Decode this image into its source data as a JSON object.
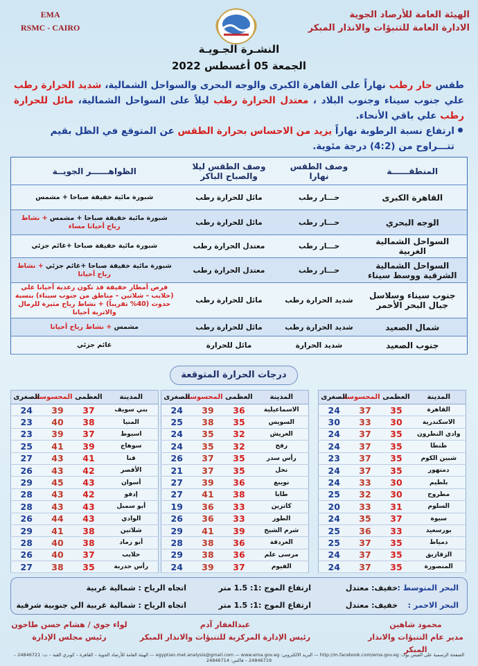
{
  "header": {
    "org_en": [
      "EMA",
      "RSMC - CAIRO"
    ],
    "org_ar": [
      "الهيئة العامة للأرصاد الجوية",
      "الادارة العامة للتنبؤات والانذار المبكر"
    ]
  },
  "title": "النشـرة الجـويـة",
  "date": "الجمعة 05 أغسطس 2022",
  "summary": [
    {
      "text": "طقس ",
      "color": "#1d3d94"
    },
    {
      "text": "حار رطب",
      "color": "#d4201f"
    },
    {
      "text": " نهاراً على القاهرة الكبرى والوجه البحرى والسواحل الشمالية، ",
      "color": "#1d3d94"
    },
    {
      "text": "شديد الحرارة رطب",
      "color": "#d4201f"
    },
    {
      "text": " علي جنوب سيناء وجنوب البلاد ، ",
      "color": "#1d3d94"
    },
    {
      "text": "معتدل الحرارة رطب",
      "color": "#d4201f"
    },
    {
      "text": " ليلاً على السواحل الشمالية، ",
      "color": "#1d3d94"
    },
    {
      "text": "مائل للحرارة رطب",
      "color": "#d4201f"
    },
    {
      "text": " علي باقي الأنحاء.",
      "color": "#1d3d94"
    }
  ],
  "bullet": [
    {
      "text": "ارتفاع نسبة الرطوبة نهاراً ",
      "color": "#1d3d94"
    },
    {
      "text": "يزيد من الاحساس بحرارة الطقس",
      "color": "#d4201f"
    },
    {
      "text": " عن المتوقع في الظل بقيم تتـــراوح من (4:2) درجة مئوية.",
      "color": "#1d3d94"
    }
  ],
  "weather_table": {
    "headers": [
      "المنطقــــــة",
      "وصف الطقس نهارا",
      "وصف الطقس ليلا والصباح الباكر",
      "الظواهــــــر الجويــة"
    ],
    "rows": [
      {
        "region": "القاهرة الكبرى",
        "day": "حـــار رطب",
        "night": "مائل للحرارة رطب",
        "phenomena": [
          {
            "text": "شبورة مائية خفيفة صباحا + مشمس",
            "color": "#111111"
          }
        ]
      },
      {
        "region": "الوجه البحري",
        "day": "حـــار رطب",
        "night": "مائل للحرارة رطب",
        "phenomena": [
          {
            "text": "شبورة مائية خفيفة صباحا + مشمس ",
            "color": "#111111"
          },
          {
            "text": "+ نشاط رياح أحيانا مساء",
            "color": "#d4201f"
          }
        ]
      },
      {
        "region": "السواحل الشمالية الغربية",
        "day": "حـــار رطب",
        "night": "معتدل الحرارة رطب",
        "phenomena": [
          {
            "text": "شبورة مائية خفيفة صباحا +غائم جزئي",
            "color": "#111111"
          }
        ]
      },
      {
        "region": "السواحل الشمالية الشرقية ووسط سيناء",
        "day": "حـــار رطب",
        "night": "معتدل الحرارة رطب",
        "phenomena": [
          {
            "text": "شبورة مائية خفيفة صباحا +غائم جزئي ",
            "color": "#111111"
          },
          {
            "text": "+ نشاط رياح أحيانا",
            "color": "#d4201f"
          }
        ]
      },
      {
        "region": "جنوب سيناء وسلاسل جبال البحر الأحمر",
        "day": "شديد الحرارة رطب",
        "night": "مائل للحرارة رطب",
        "phenomena": [
          {
            "text": "فرص أمطار خفيفة قد تكون رعدية أحيانا علي (حلايب – شلاتين – مناطق من جنوب سيناء) بنسبة حدوث (40% تقريباً) + نشاط رياح مثيرة للرمال والاتربة أحيانا",
            "color": "#d4201f"
          }
        ]
      },
      {
        "region": "شمال الصعيد",
        "day": "شديد الحرارة رطب",
        "night": "مائل للحرارة رطب",
        "phenomena": [
          {
            "text": "مشمس ",
            "color": "#111111"
          },
          {
            "text": "+ نشاط رياح أحيانا",
            "color": "#d4201f"
          }
        ]
      },
      {
        "region": "جنوب الصعيد",
        "day": "شديد الحرارة",
        "night": "مائل للحرارة",
        "phenomena": [
          {
            "text": "غائم جزئي",
            "color": "#111111"
          }
        ]
      }
    ]
  },
  "temp_title": "درجات الحرارة المتوقعة",
  "temp_headers": [
    "المدينة",
    "العظمى",
    "المحسوسة",
    "الصغرى"
  ],
  "temp_blocks": [
    [
      {
        "city": "القاهرة",
        "max": 35,
        "feel": 37,
        "min": 24
      },
      {
        "city": "الاسكندرية",
        "max": 30,
        "feel": 33,
        "min": 30
      },
      {
        "city": "وادي النطرون",
        "max": 35,
        "feel": 37,
        "min": 24
      },
      {
        "city": "طنطا",
        "max": 35,
        "feel": 37,
        "min": 24
      },
      {
        "city": "شبين الكوم",
        "max": 35,
        "feel": 37,
        "min": 23
      },
      {
        "city": "دمنهور",
        "max": 35,
        "feel": 37,
        "min": 24
      },
      {
        "city": "بلطيم",
        "max": 30,
        "feel": 33,
        "min": 24
      },
      {
        "city": "مطروح",
        "max": 30,
        "feel": 32,
        "min": 25
      },
      {
        "city": "السلوم",
        "max": 31,
        "feel": 33,
        "min": 20
      },
      {
        "city": "سيوة",
        "max": 37,
        "feel": 35,
        "min": 24
      },
      {
        "city": "بورسعيد",
        "max": 33,
        "feel": 36,
        "min": 25
      },
      {
        "city": "دمياط",
        "max": 35,
        "feel": 37,
        "min": 25
      },
      {
        "city": "الزقازيق",
        "max": 35,
        "feel": 37,
        "min": 24
      },
      {
        "city": "المنصورة",
        "max": 35,
        "feel": 37,
        "min": 24
      }
    ],
    [
      {
        "city": "الاسماعيلية",
        "max": 36,
        "feel": 39,
        "min": 24
      },
      {
        "city": "السويس",
        "max": 35,
        "feel": 38,
        "min": 25
      },
      {
        "city": "العريش",
        "max": 32,
        "feel": 35,
        "min": 24
      },
      {
        "city": "رفح",
        "max": 32,
        "feel": 35,
        "min": 24
      },
      {
        "city": "رأس سدر",
        "max": 35,
        "feel": 37,
        "min": 26
      },
      {
        "city": "نخل",
        "max": 35,
        "feel": 37,
        "min": 21
      },
      {
        "city": "نويبع",
        "max": 36,
        "feel": 39,
        "min": 27
      },
      {
        "city": "طابا",
        "max": 38,
        "feel": 41,
        "min": 27
      },
      {
        "city": "كاترين",
        "max": 33,
        "feel": 36,
        "min": 19
      },
      {
        "city": "الطور",
        "max": 33,
        "feel": 36,
        "min": 26
      },
      {
        "city": "شرم الشيخ",
        "max": 39,
        "feel": 41,
        "min": 29
      },
      {
        "city": "الغردقة",
        "max": 36,
        "feel": 38,
        "min": 28
      },
      {
        "city": "مرسى علم",
        "max": 36,
        "feel": 38,
        "min": 29
      },
      {
        "city": "الفيوم",
        "max": 37,
        "feel": 39,
        "min": 24
      }
    ],
    [
      {
        "city": "بني سويف",
        "max": 37,
        "feel": 39,
        "min": 24
      },
      {
        "city": "المنيا",
        "max": 38,
        "feel": 40,
        "min": 23
      },
      {
        "city": "اسيوط",
        "max": 37,
        "feel": 39,
        "min": 23
      },
      {
        "city": "سوهاج",
        "max": 39,
        "feel": 41,
        "min": 25
      },
      {
        "city": "قنا",
        "max": 41,
        "feel": 43,
        "min": 27
      },
      {
        "city": "الأقصر",
        "max": 42,
        "feel": 43,
        "min": 26
      },
      {
        "city": "أسوان",
        "max": 43,
        "feel": 45,
        "min": 29
      },
      {
        "city": "إدفو",
        "max": 42,
        "feel": 43,
        "min": 28
      },
      {
        "city": "أبو سمبل",
        "max": 43,
        "feel": 43,
        "min": 28
      },
      {
        "city": "الوادي",
        "max": 43,
        "feel": 44,
        "min": 26
      },
      {
        "city": "شلاتين",
        "max": 38,
        "feel": 41,
        "min": 29
      },
      {
        "city": "أبو رماد",
        "max": 38,
        "feel": 40,
        "min": 28
      },
      {
        "city": "حلايب",
        "max": 37,
        "feel": 40,
        "min": 26
      },
      {
        "city": "رأس حدربة",
        "max": 35,
        "feel": 38,
        "min": 27
      }
    ]
  ],
  "sea": [
    {
      "label": "البحر المتوسط :",
      "state": "خفيف: معتدل",
      "wave": "ارتفاع الموج :1: 1.5 متر",
      "wind": "اتجاه الرياح : شمالية غربية"
    },
    {
      "label": "البحر الاحمر :",
      "state": "خفيف: معتدل",
      "wave": "ارتفاع الموج :1: 1.5 متر",
      "wind": "اتجاه الرياح : شمالية غربية الي جنوبية شرقية"
    }
  ],
  "signatures": [
    {
      "name": "محمود شاهين",
      "role": "مدير عام التنبؤات والانذار المبكر"
    },
    {
      "name": "عبدالغفار آدم",
      "role": "رئيس الإدارة المركزية للتنبؤات والانذار المبكر"
    },
    {
      "name": "لواء جوي / هشام حسن طاحون",
      "role": "رئيس مجلس الإدارة"
    }
  ],
  "footer": "الصفحة الرسمية على الفيس بوك: http://m.facebook.com/ema.gov.eg — البريد الالكتروني: egyptian.met.analysis@gmail.com — www.ema.gov.eg — الهيئة العامة للأرصاد الجوية – القاهرة – كوبري القبة – ت: 24846721 – 24846719 – فاكس: 24846714"
}
